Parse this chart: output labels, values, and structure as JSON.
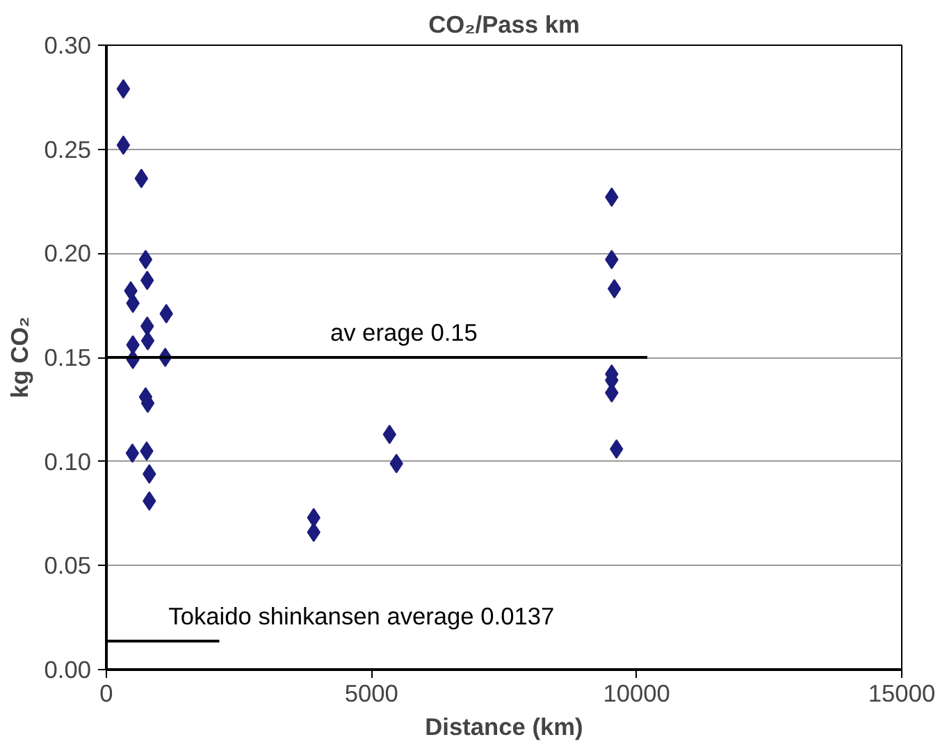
{
  "chart_data": {
    "type": "scatter",
    "title": "CO₂/Pass km",
    "xlabel": "Distance (km)",
    "ylabel": "kg CO₂",
    "xlim": [
      0,
      15000
    ],
    "xticks": [
      0,
      5000,
      10000,
      15000
    ],
    "ylim": [
      0,
      0.3
    ],
    "yticks": [
      {
        "value": 0,
        "label": "0.00"
      },
      {
        "value": 0.05,
        "label": "0.05"
      },
      {
        "value": 0.1,
        "label": "0.10"
      },
      {
        "value": 0.15,
        "label": "0.15"
      },
      {
        "value": 0.2,
        "label": "0.20"
      },
      {
        "value": 0.25,
        "label": "0.25"
      },
      {
        "value": 0.3,
        "label": "0.30"
      }
    ],
    "grid": "y",
    "marker": "diamond",
    "legend": false,
    "series": [
      {
        "color": "#1c1c7e",
        "x": [
          320,
          320,
          660,
          740,
          770,
          460,
          500,
          1130,
          770,
          500,
          780,
          500,
          1110,
          740,
          780,
          490,
          760,
          810,
          810,
          3910,
          3910,
          5340,
          5470,
          9530,
          9530,
          9580,
          9530,
          9530,
          9530,
          9620
        ],
        "values": [
          0.279,
          0.252,
          0.236,
          0.197,
          0.187,
          0.182,
          0.176,
          0.171,
          0.165,
          0.156,
          0.158,
          0.149,
          0.15,
          0.131,
          0.128,
          0.104,
          0.105,
          0.094,
          0.081,
          0.073,
          0.066,
          0.113,
          0.099,
          0.227,
          0.197,
          0.183,
          0.142,
          0.139,
          0.133,
          0.106
        ]
      },
      {
        "type": "line",
        "name": "av erage 0.15",
        "color": "#000000",
        "marker": "none",
        "x": [
          0,
          10200
        ],
        "values": [
          0.15,
          0.15
        ]
      },
      {
        "type": "line",
        "name": "Tokaido shinkansen average 0.0137",
        "color": "#000000",
        "marker": "none",
        "x": [
          0,
          2130
        ],
        "values": [
          0.0137,
          0.0137
        ]
      }
    ]
  }
}
